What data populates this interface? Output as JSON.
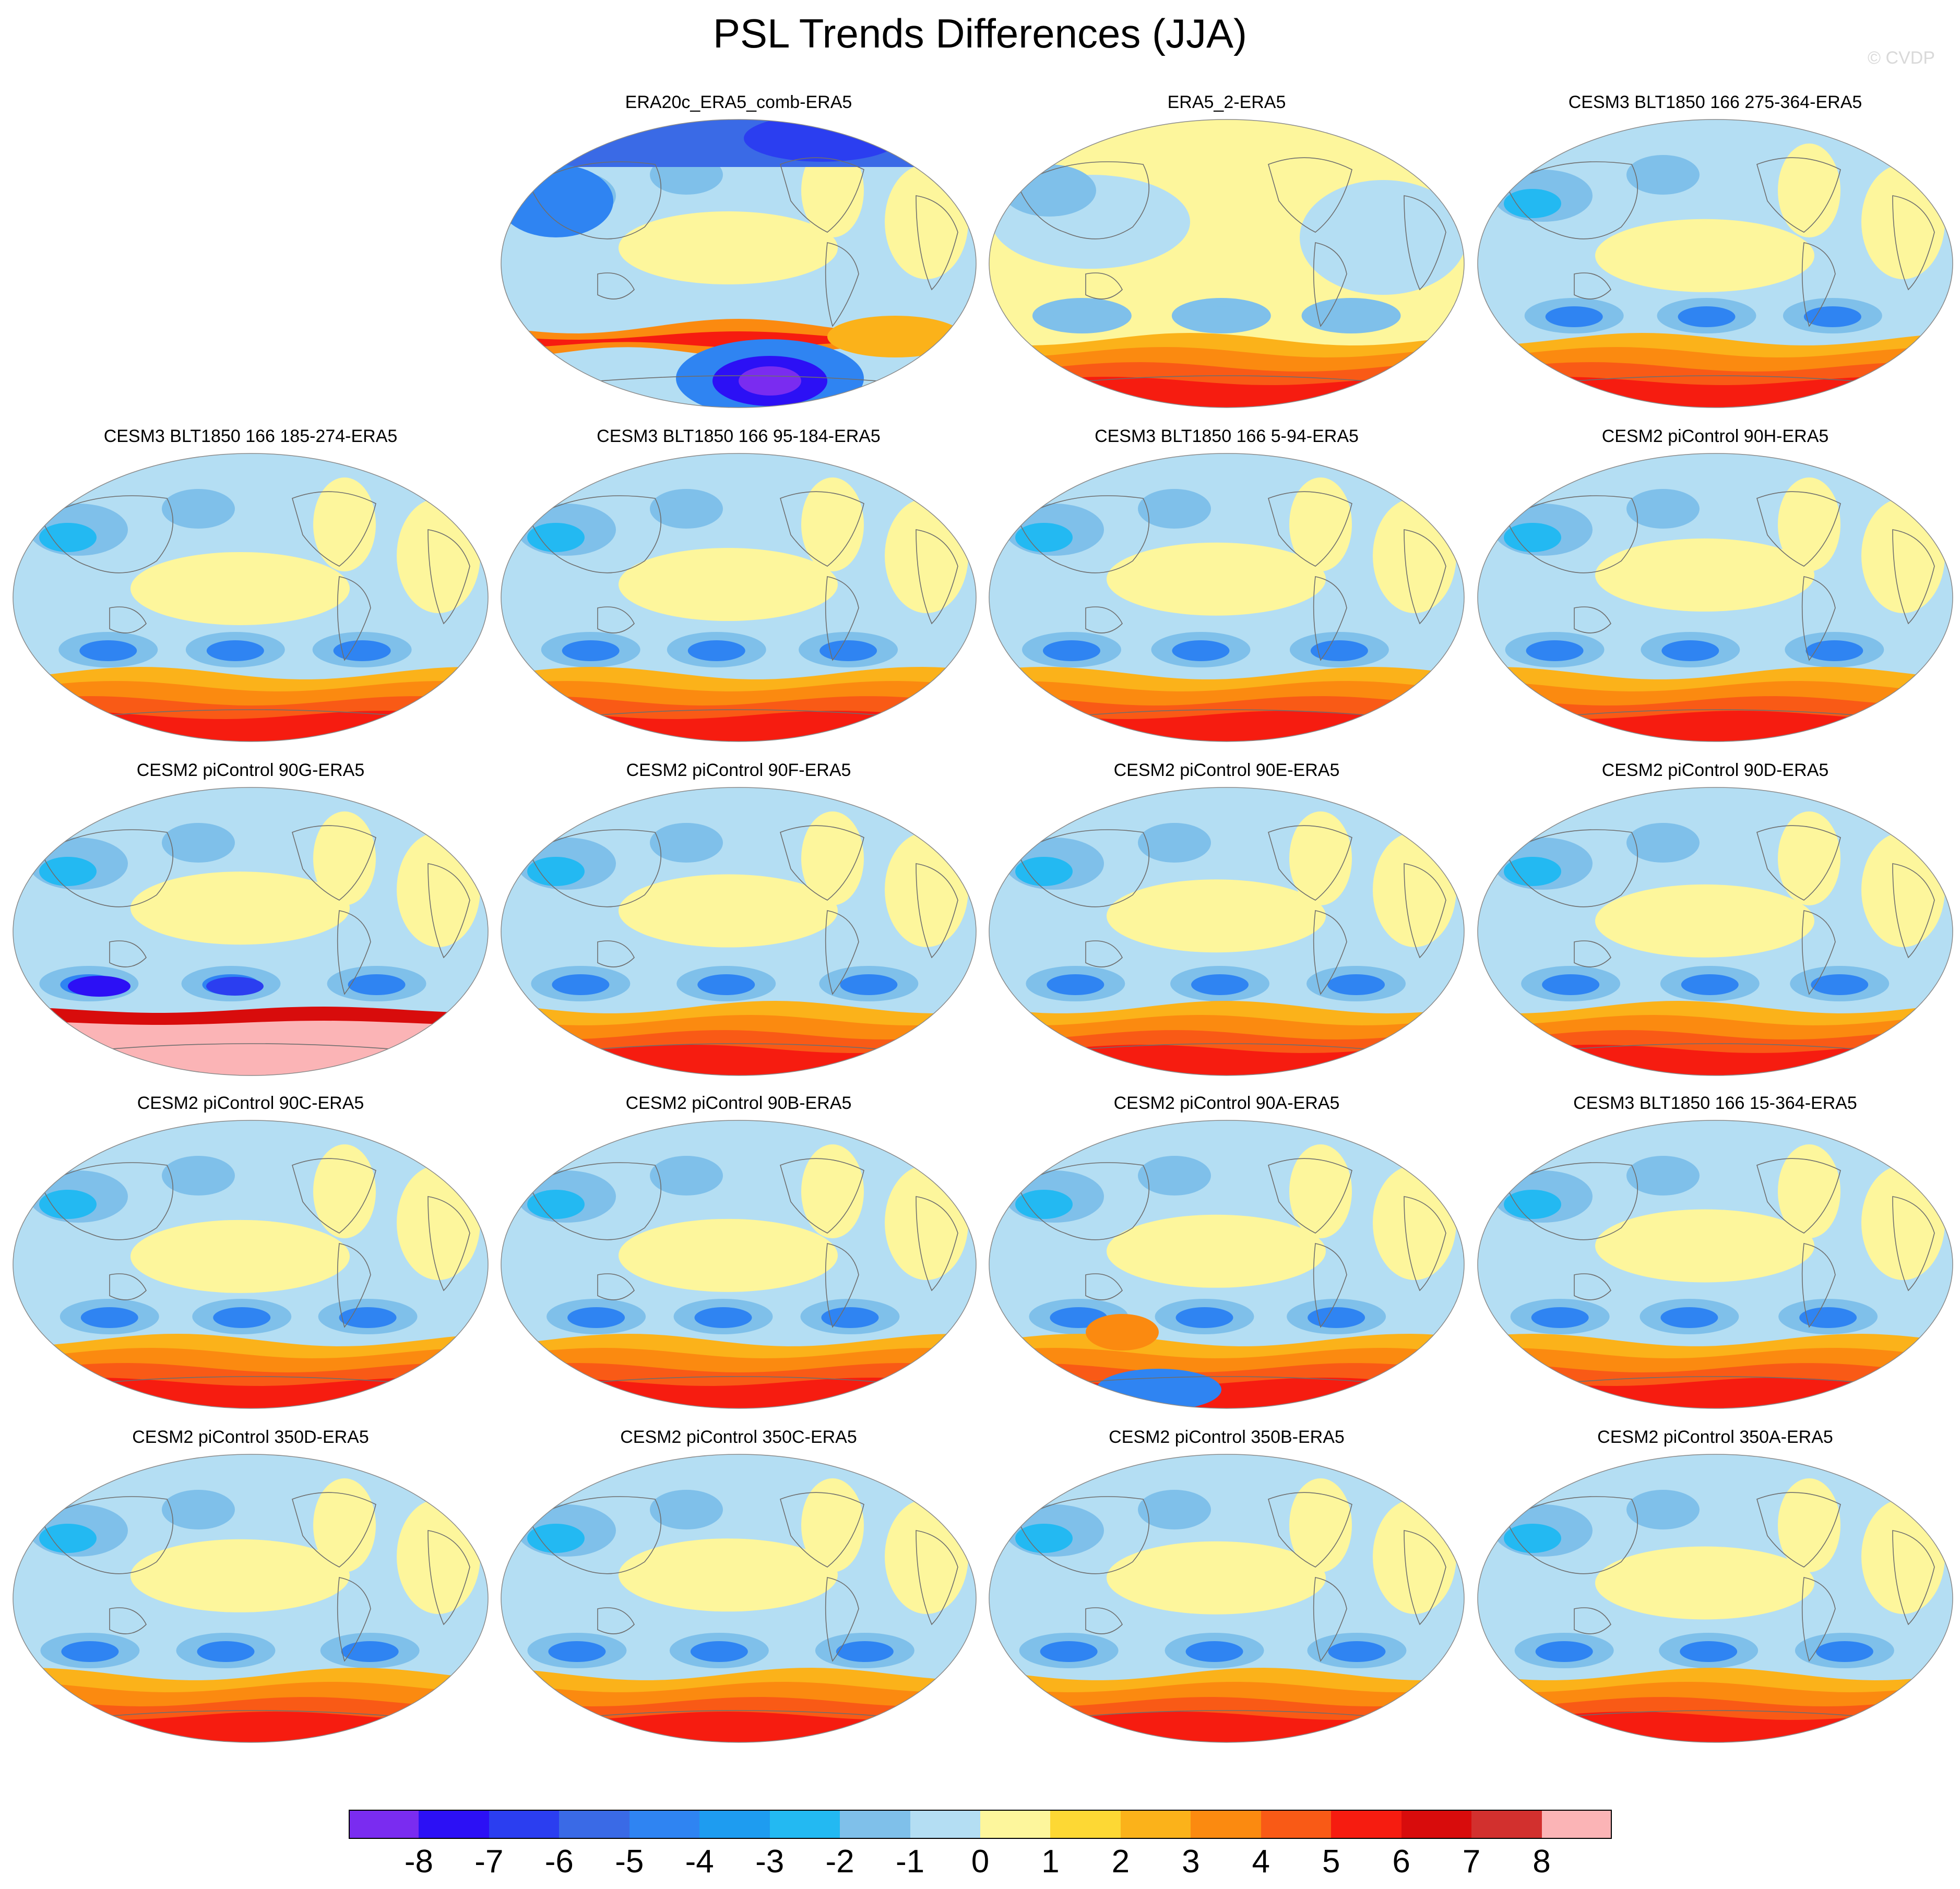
{
  "title": "PSL Trends Differences (JJA)",
  "watermark": "© CVDP",
  "panels": [
    {
      "title": "ERA20c_ERA5_comb-ERA5",
      "pattern": "reanalysis-strong",
      "icon": "world-map"
    },
    {
      "title": "ERA5_2-ERA5",
      "pattern": "weak-positive",
      "icon": "world-map"
    },
    {
      "title": "CESM3 BLT1850 166 275-364-ERA5",
      "pattern": "model",
      "icon": "world-map"
    },
    {
      "title": "CESM3 BLT1850 166 185-274-ERA5",
      "pattern": "model",
      "icon": "world-map"
    },
    {
      "title": "CESM3 BLT1850 166 95-184-ERA5",
      "pattern": "model",
      "icon": "world-map"
    },
    {
      "title": "CESM3 BLT1850 166 5-94-ERA5",
      "pattern": "model",
      "icon": "world-map"
    },
    {
      "title": "CESM2 piControl 90H-ERA5",
      "pattern": "model",
      "icon": "world-map"
    },
    {
      "title": "CESM2 piControl 90G-ERA5",
      "pattern": "model-strong-south",
      "icon": "world-map"
    },
    {
      "title": "CESM2 piControl 90F-ERA5",
      "pattern": "model",
      "icon": "world-map"
    },
    {
      "title": "CESM2 piControl 90E-ERA5",
      "pattern": "model",
      "icon": "world-map"
    },
    {
      "title": "CESM2 piControl 90D-ERA5",
      "pattern": "model",
      "icon": "world-map"
    },
    {
      "title": "CESM2 piControl 90C-ERA5",
      "pattern": "model",
      "icon": "world-map"
    },
    {
      "title": "CESM2 piControl 90B-ERA5",
      "pattern": "model",
      "icon": "world-map"
    },
    {
      "title": "CESM2 piControl 90A-ERA5",
      "pattern": "model-mixed-south",
      "icon": "world-map"
    },
    {
      "title": "CESM3 BLT1850 166 15-364-ERA5",
      "pattern": "model",
      "icon": "world-map"
    },
    {
      "title": "CESM2 piControl 350D-ERA5",
      "pattern": "model",
      "icon": "world-map"
    },
    {
      "title": "CESM2 piControl 350C-ERA5",
      "pattern": "model",
      "icon": "world-map"
    },
    {
      "title": "CESM2 piControl 350B-ERA5",
      "pattern": "model",
      "icon": "world-map"
    },
    {
      "title": "CESM2 piControl 350A-ERA5",
      "pattern": "model",
      "icon": "world-map"
    }
  ],
  "colorbar": {
    "labels": [
      "-8",
      "-7",
      "-6",
      "-5",
      "-4",
      "-3",
      "-2",
      "-1",
      "0",
      "1",
      "2",
      "3",
      "4",
      "5",
      "6",
      "7",
      "8"
    ],
    "colors": [
      "#7a2cf0",
      "#2c10f5",
      "#2b3ef0",
      "#3a6ae6",
      "#2f84f2",
      "#1e9cf0",
      "#23b9f2",
      "#7fc0ea",
      "#b4def3",
      "#fdf69c",
      "#fdd834",
      "#fbb21a",
      "#fb8a10",
      "#f95a16",
      "#f61c10",
      "#d80c0c",
      "#d2302e",
      "#fbb4b6"
    ]
  }
}
